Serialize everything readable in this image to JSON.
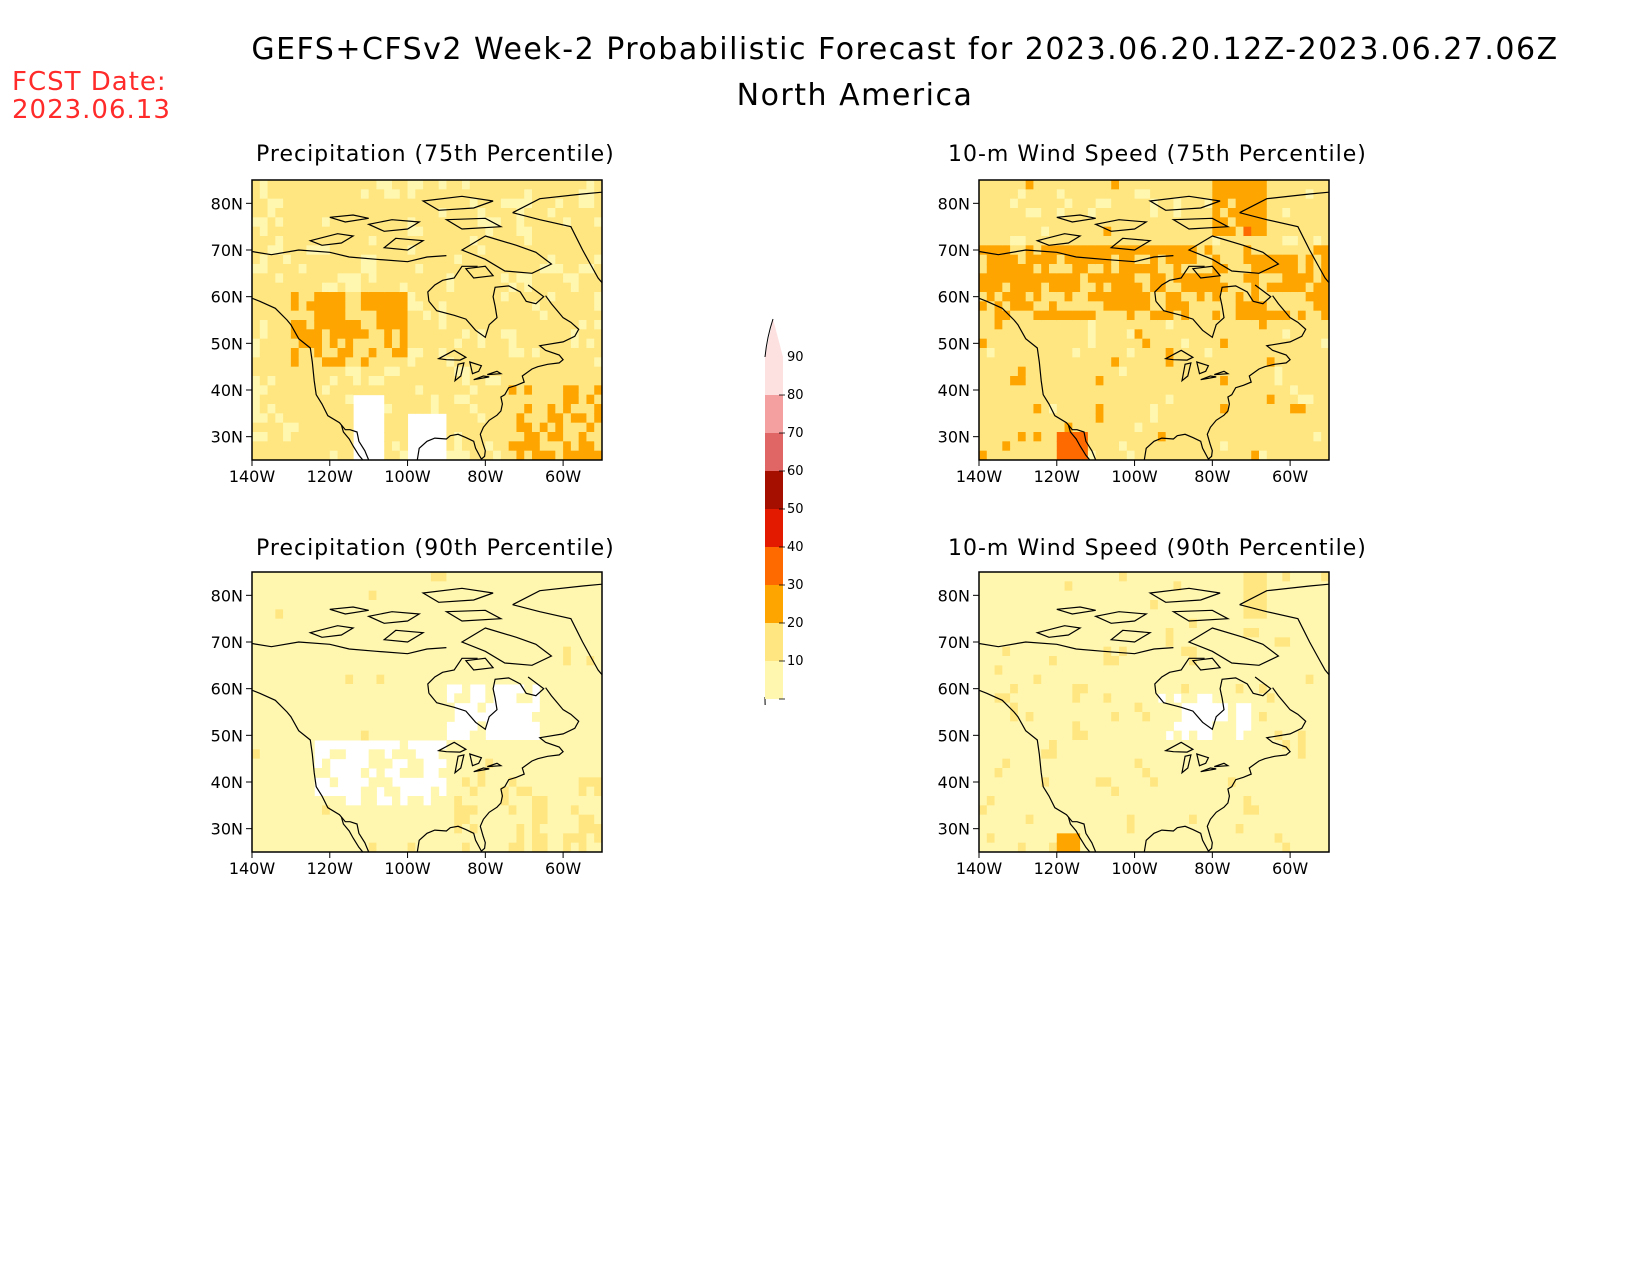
{
  "header": {
    "title": "GEFS+CFSv2 Week-2 Probabilistic Forecast for 2023.06.20.12Z-2023.06.27.06Z",
    "subtitle": "North America",
    "fcst_label": "FCST Date:",
    "fcst_date": "2023.06.13"
  },
  "panels": [
    {
      "id": "p75",
      "title": "Precipitation (75th Percentile)",
      "intensity": 2
    },
    {
      "id": "w75",
      "title": "10-m Wind Speed (75th Percentile)",
      "intensity": 3
    },
    {
      "id": "p90",
      "title": "Precipitation (90th Percentile)",
      "intensity": 0
    },
    {
      "id": "w90",
      "title": "10-m Wind Speed (90th Percentile)",
      "intensity": 1
    }
  ],
  "axes": {
    "lat_labels": [
      "80N",
      "70N",
      "60N",
      "50N",
      "40N",
      "30N"
    ],
    "lon_labels": [
      "140W",
      "120W",
      "100W",
      "80W",
      "60W"
    ]
  },
  "colorbar": {
    "levels": [
      "10",
      "20",
      "30",
      "40",
      "50",
      "60",
      "70",
      "80",
      "90"
    ],
    "colors": [
      "#fff7b0",
      "#ffe680",
      "#ffa500",
      "#ff6a00",
      "#e31a00",
      "#a50f00",
      "#e06666",
      "#f4a0a0",
      "#fde0e0"
    ]
  }
}
